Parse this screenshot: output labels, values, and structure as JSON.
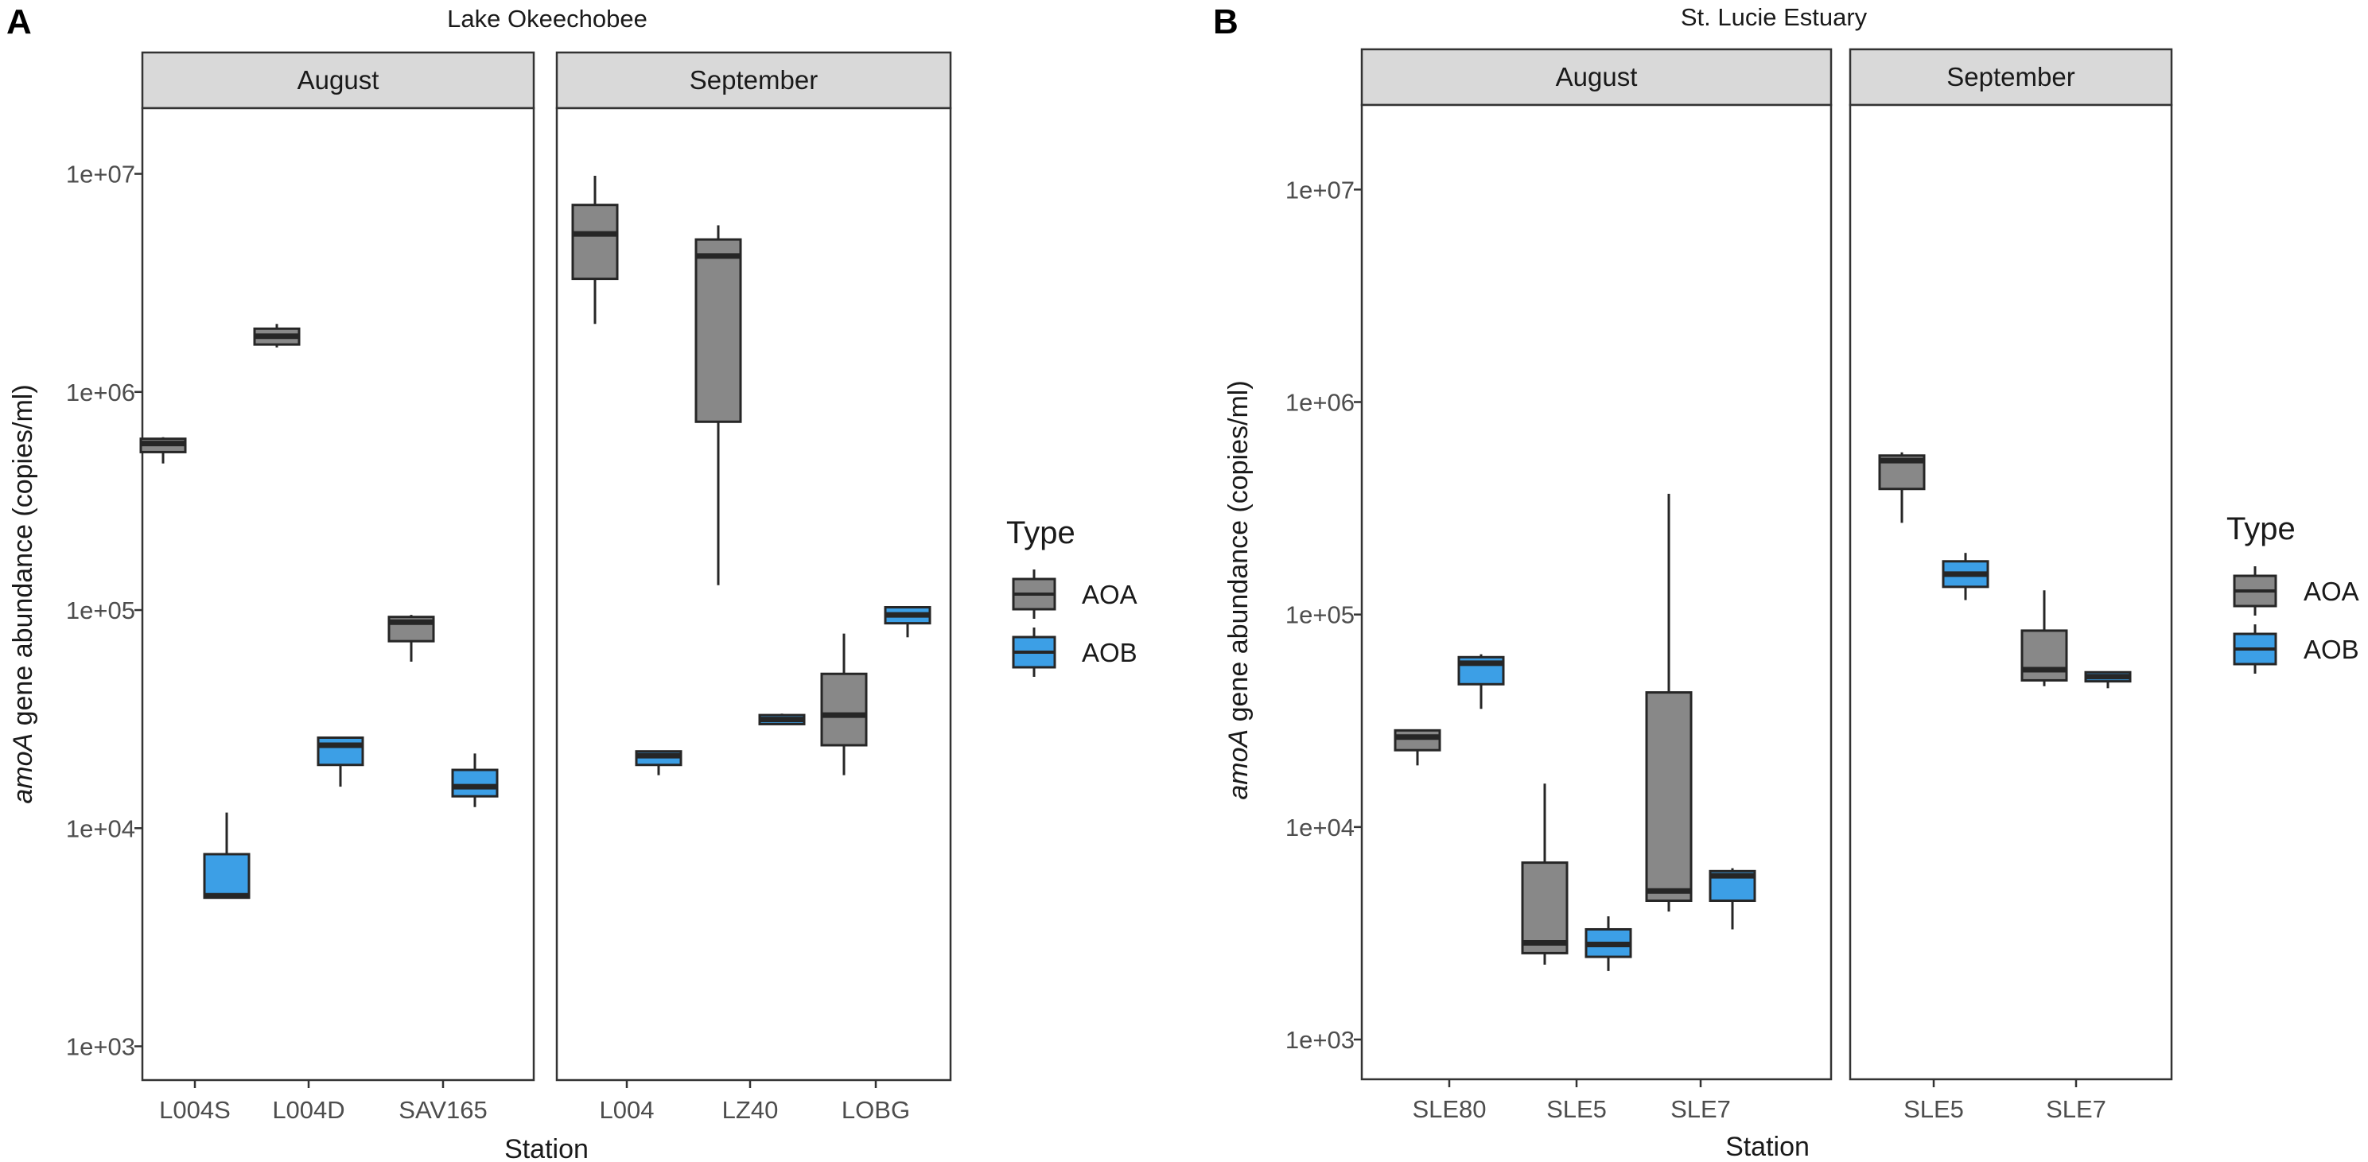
{
  "chart_data": [
    {
      "panel_letter": "A",
      "title": "Lake Okeechobee",
      "type": "box",
      "ylabel_italic": "amoA",
      "ylabel_rest": " gene abundance (copies/ml)",
      "xlabel": "Station",
      "yscale": "log10",
      "ylim": [
        700,
        20000000
      ],
      "yticks": [
        {
          "value": 1000,
          "label": "1e+03"
        },
        {
          "value": 10000,
          "label": "1e+04"
        },
        {
          "value": 100000,
          "label": "1e+05"
        },
        {
          "value": 1000000,
          "label": "1e+06"
        },
        {
          "value": 10000000,
          "label": "1e+07"
        }
      ],
      "legend": {
        "title": "Type",
        "items": [
          {
            "name": "AOA",
            "color": "#888888"
          },
          {
            "name": "AOB",
            "color": "#3c9fe6"
          }
        ]
      },
      "facets": [
        {
          "label": "August",
          "stations": [
            "L004S",
            "L004D",
            "SAV165"
          ],
          "boxes": [
            {
              "station": "L004S",
              "type": "AOA",
              "min": 470000,
              "q1": 530000,
              "median": 580000,
              "q3": 610000,
              "max": 620000
            },
            {
              "station": "L004S",
              "type": "AOB",
              "min": 4800,
              "q1": 4800,
              "median": 4900,
              "q3": 7600,
              "max": 11800
            },
            {
              "station": "L004D",
              "type": "AOA",
              "min": 1600000,
              "q1": 1650000,
              "median": 1800000,
              "q3": 1950000,
              "max": 2050000
            },
            {
              "station": "L004D",
              "type": "AOB",
              "min": 15500,
              "q1": 19500,
              "median": 24000,
              "q3": 26000,
              "max": 26000
            },
            {
              "station": "SAV165",
              "type": "AOA",
              "min": 58000,
              "q1": 72000,
              "median": 88000,
              "q3": 93000,
              "max": 95000
            },
            {
              "station": "SAV165",
              "type": "AOB",
              "min": 12500,
              "q1": 14000,
              "median": 15500,
              "q3": 18500,
              "max": 22000
            }
          ]
        },
        {
          "label": "September",
          "stations": [
            "L004",
            "LZ40",
            "LOBG"
          ],
          "boxes": [
            {
              "station": "L004",
              "type": "AOA",
              "min": 2050000,
              "q1": 3300000,
              "median": 5300000,
              "q3": 7200000,
              "max": 9800000
            },
            {
              "station": "L004",
              "type": "AOB",
              "min": 17500,
              "q1": 19500,
              "median": 21500,
              "q3": 22500,
              "max": 22500
            },
            {
              "station": "LZ40",
              "type": "AOA",
              "min": 130000,
              "q1": 730000,
              "median": 4200000,
              "q3": 5000000,
              "max": 5800000
            },
            {
              "station": "LZ40",
              "type": "AOB",
              "min": 30000,
              "q1": 30000,
              "median": 31500,
              "q3": 33000,
              "max": 33500
            },
            {
              "station": "LOBG",
              "type": "AOA",
              "min": 17500,
              "q1": 24000,
              "median": 33000,
              "q3": 51000,
              "max": 78000
            },
            {
              "station": "LOBG",
              "type": "AOB",
              "min": 75000,
              "q1": 87000,
              "median": 95000,
              "q3": 103000,
              "max": 103000
            }
          ]
        }
      ]
    },
    {
      "panel_letter": "B",
      "title": "St. Lucie Estuary",
      "type": "box",
      "ylabel_italic": "amoA",
      "ylabel_rest": " gene abundance (copies/ml)",
      "xlabel": "Station",
      "yscale": "log10",
      "ylim": [
        650,
        25000000
      ],
      "yticks": [
        {
          "value": 1000,
          "label": "1e+03"
        },
        {
          "value": 10000,
          "label": "1e+04"
        },
        {
          "value": 100000,
          "label": "1e+05"
        },
        {
          "value": 1000000,
          "label": "1e+06"
        },
        {
          "value": 10000000,
          "label": "1e+07"
        }
      ],
      "legend": {
        "title": "Type",
        "items": [
          {
            "name": "AOA",
            "color": "#888888"
          },
          {
            "name": "AOB",
            "color": "#3c9fe6"
          }
        ]
      },
      "facets": [
        {
          "label": "August",
          "stations": [
            "SLE80",
            "SLE5",
            "SLE7"
          ],
          "boxes": [
            {
              "station": "SLE80",
              "type": "AOA",
              "min": 19500,
              "q1": 23000,
              "median": 26500,
              "q3": 28500,
              "max": 28500
            },
            {
              "station": "SLE80",
              "type": "AOB",
              "min": 36000,
              "q1": 47000,
              "median": 59000,
              "q3": 63000,
              "max": 65000
            },
            {
              "station": "SLE5",
              "type": "AOA",
              "min": 2250,
              "q1": 2550,
              "median": 2850,
              "q3": 6800,
              "max": 16000
            },
            {
              "station": "SLE5",
              "type": "AOB",
              "min": 2100,
              "q1": 2450,
              "median": 2800,
              "q3": 3300,
              "max": 3800
            },
            {
              "station": "SLE7",
              "type": "AOA",
              "min": 4000,
              "q1": 4500,
              "median": 5000,
              "q3": 43000,
              "max": 370000
            },
            {
              "station": "SLE7",
              "type": "AOB",
              "min": 3300,
              "q1": 4500,
              "median": 5900,
              "q3": 6200,
              "max": 6400
            }
          ]
        },
        {
          "label": "September",
          "stations": [
            "SLE5",
            "SLE7"
          ],
          "boxes": [
            {
              "station": "SLE5",
              "type": "AOA",
              "min": 270000,
              "q1": 390000,
              "median": 530000,
              "q3": 560000,
              "max": 580000
            },
            {
              "station": "SLE5",
              "type": "AOB",
              "min": 117000,
              "q1": 135000,
              "median": 155000,
              "q3": 178000,
              "max": 195000
            },
            {
              "station": "SLE7",
              "type": "AOA",
              "min": 46000,
              "q1": 49000,
              "median": 55000,
              "q3": 84000,
              "max": 130000
            },
            {
              "station": "SLE7",
              "type": "AOB",
              "min": 45000,
              "q1": 48500,
              "median": 51000,
              "q3": 53500,
              "max": 53500
            }
          ]
        }
      ]
    }
  ]
}
